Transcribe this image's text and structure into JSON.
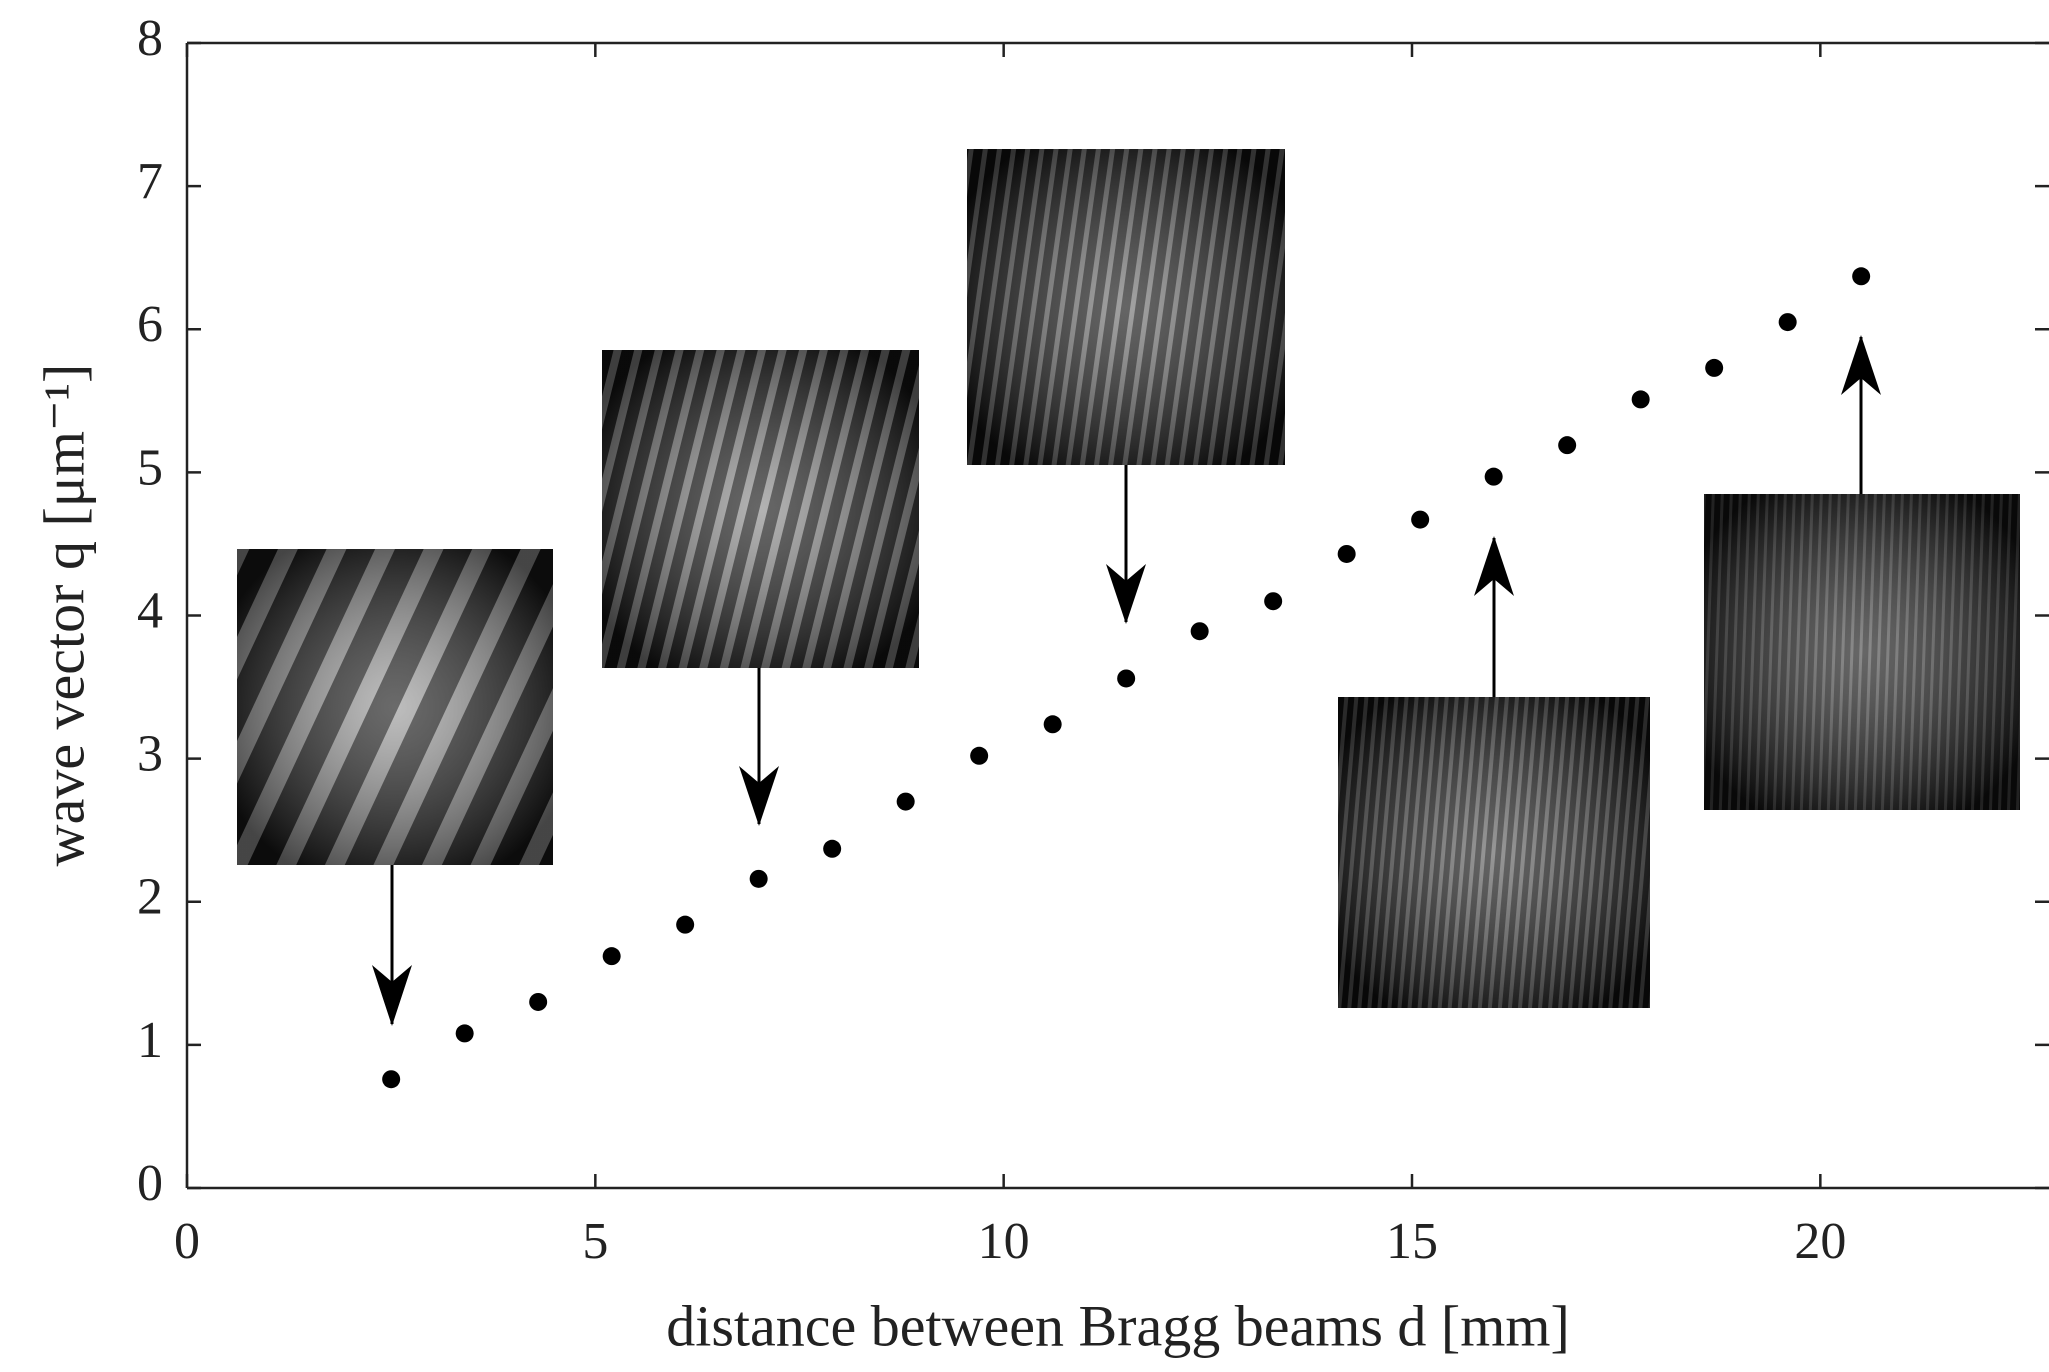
{
  "chart_data": {
    "type": "scatter",
    "xlabel": "distance between Bragg beams d [mm]",
    "ylabel": "wave vector q [μm⁻¹]",
    "x": [
      2.5,
      3.4,
      4.3,
      5.2,
      6.1,
      7.0,
      7.9,
      8.8,
      9.7,
      10.6,
      11.5,
      12.4,
      13.3,
      14.2,
      15.1,
      16.0,
      16.9,
      17.8,
      18.7,
      19.6,
      20.5
    ],
    "values": [
      0.76,
      1.08,
      1.3,
      1.62,
      1.84,
      2.16,
      2.37,
      2.7,
      3.02,
      3.24,
      3.56,
      3.89,
      4.1,
      4.43,
      4.67,
      4.97,
      5.19,
      5.51,
      5.73,
      6.05,
      6.37
    ],
    "color": "#000000",
    "xlim": [
      0,
      22.8
    ],
    "ylim": [
      0,
      8
    ],
    "xticks": [
      0,
      5,
      10,
      15,
      20
    ],
    "yticks": [
      0,
      1,
      2,
      3,
      4,
      5,
      6,
      7,
      8
    ]
  }
}
